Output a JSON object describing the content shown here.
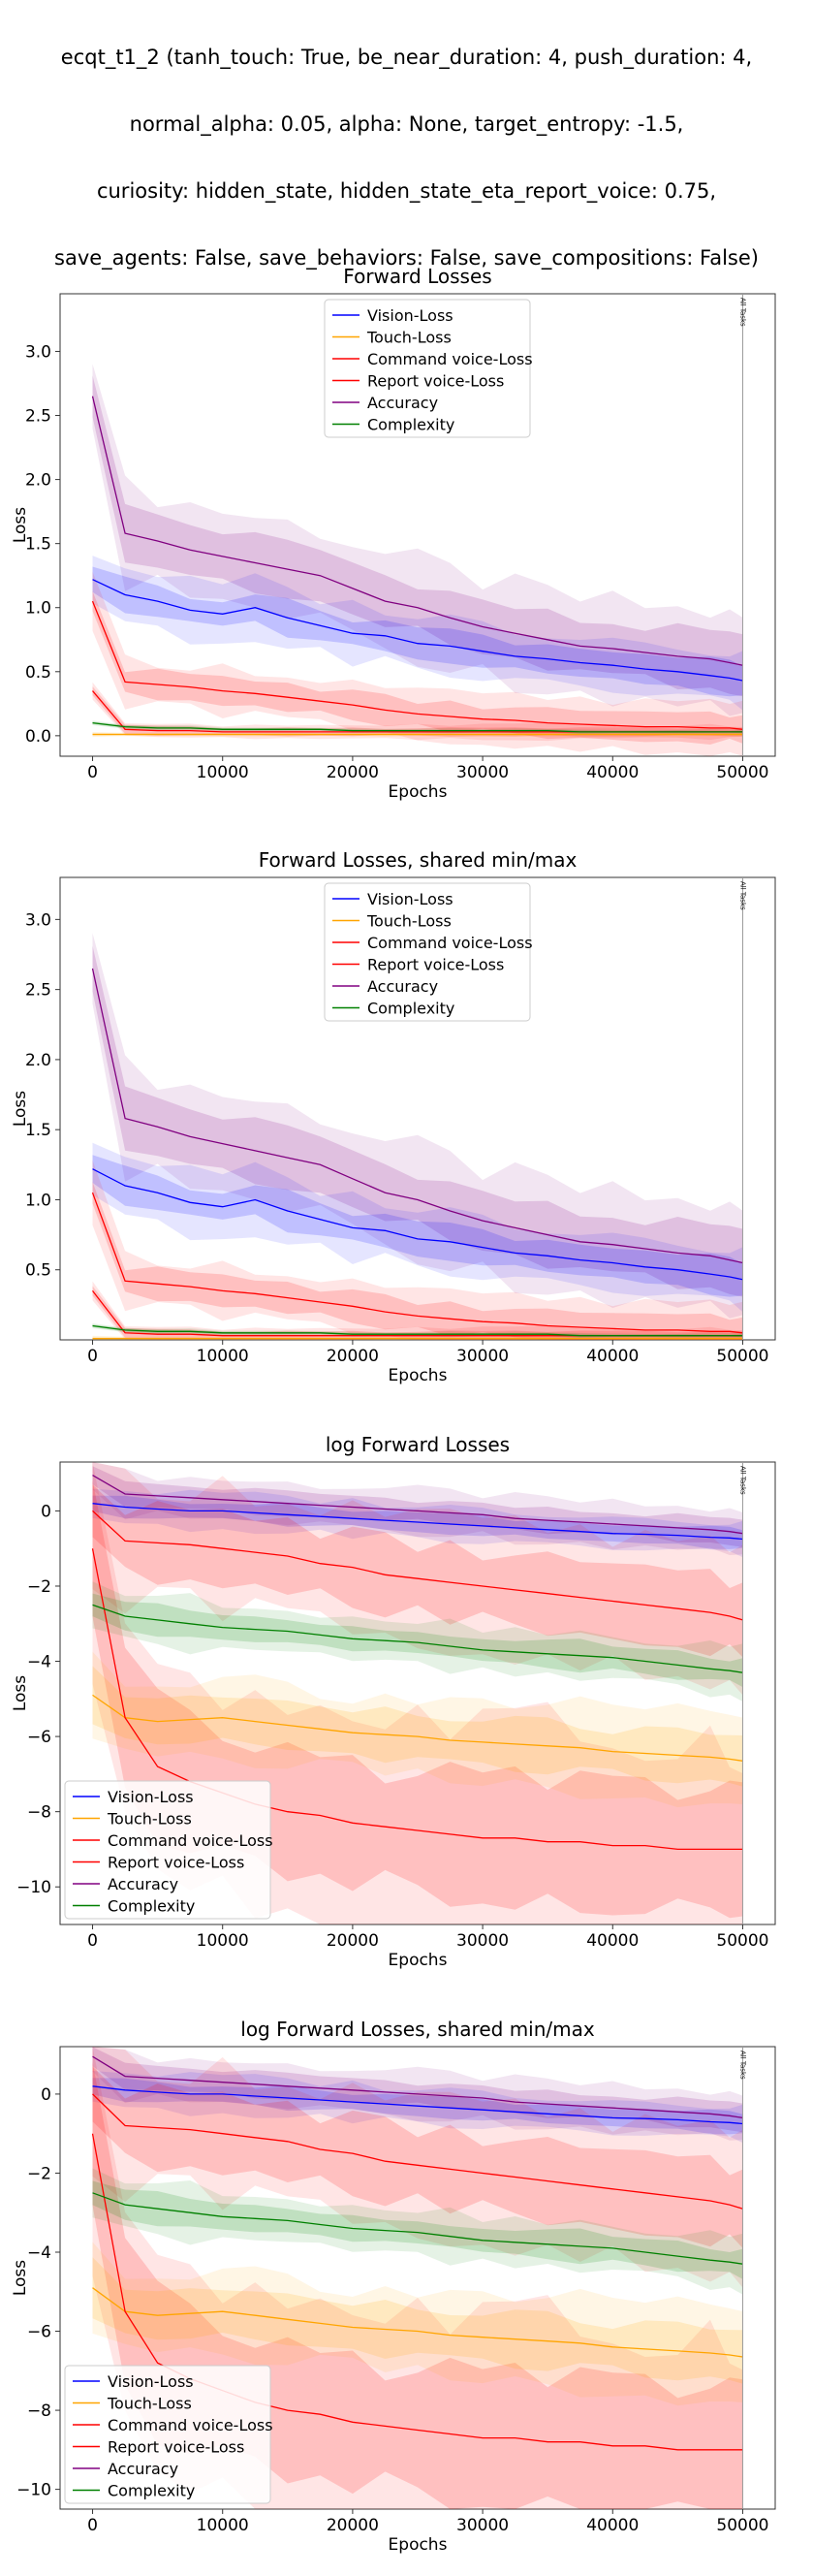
{
  "suptitle_lines": [
    "ecqt_t1_2 (tanh_touch: True, be_near_duration: 4, push_duration: 4,",
    "normal_alpha: 0.05, alpha: None, target_entropy: -1.5,",
    "curiosity: hidden_state, hidden_state_eta_report_voice: 0.75,",
    "save_agents: False, save_behaviors: False, save_compositions: False)"
  ],
  "colors": {
    "vision": "#0000ff",
    "touch": "#ffa500",
    "command": "#ff0000",
    "report": "#ff0000",
    "accuracy": "#800080",
    "complexity": "#008000"
  },
  "chart_data": [
    {
      "type": "line",
      "title": "Forward Losses",
      "xlabel": "Epochs",
      "ylabel": "Loss",
      "xlim": [
        -2500,
        52500
      ],
      "ylim": [
        -0.16,
        3.45
      ],
      "xticks": [
        0,
        10000,
        20000,
        30000,
        40000,
        50000
      ],
      "yticks": [
        0.0,
        0.5,
        1.0,
        1.5,
        2.0,
        2.5,
        3.0
      ],
      "ytick_labels": [
        "0.0",
        "0.5",
        "1.0",
        "1.5",
        "2.0",
        "2.5",
        "3.0"
      ],
      "log": false,
      "legend": "top-center",
      "vline_label": "All Tasks",
      "vline_x": 50000,
      "series": [
        {
          "name": "Vision-Loss",
          "key": "vision",
          "values": [
            1.22,
            1.1,
            1.05,
            0.98,
            0.95,
            1.0,
            0.92,
            0.86,
            0.8,
            0.78,
            0.72,
            0.7,
            0.66,
            0.62,
            0.6,
            0.57,
            0.55,
            0.52,
            0.5,
            0.47,
            0.45,
            0.43
          ]
        },
        {
          "name": "Touch-Loss",
          "key": "touch",
          "values": [
            0.01,
            0.01,
            0.01,
            0.01,
            0.01,
            0.01,
            0.01,
            0.01,
            0.01,
            0.01,
            0.01,
            0.01,
            0.01,
            0.01,
            0.01,
            0.01,
            0.01,
            0.01,
            0.01,
            0.01,
            0.01,
            0.01
          ]
        },
        {
          "name": "Command voice-Loss",
          "key": "command",
          "values": [
            0.35,
            0.05,
            0.04,
            0.04,
            0.03,
            0.03,
            0.03,
            0.03,
            0.03,
            0.03,
            0.03,
            0.03,
            0.03,
            0.03,
            0.03,
            0.03,
            0.03,
            0.03,
            0.03,
            0.03,
            0.03,
            0.03
          ]
        },
        {
          "name": "Report voice-Loss",
          "key": "report",
          "values": [
            1.05,
            0.42,
            0.4,
            0.38,
            0.35,
            0.33,
            0.3,
            0.27,
            0.24,
            0.2,
            0.17,
            0.15,
            0.13,
            0.12,
            0.1,
            0.09,
            0.08,
            0.07,
            0.07,
            0.06,
            0.06,
            0.05
          ]
        },
        {
          "name": "Accuracy",
          "key": "accuracy",
          "values": [
            2.65,
            1.58,
            1.52,
            1.45,
            1.4,
            1.35,
            1.3,
            1.25,
            1.15,
            1.05,
            1.0,
            0.92,
            0.85,
            0.8,
            0.75,
            0.7,
            0.68,
            0.65,
            0.62,
            0.6,
            0.57,
            0.55
          ]
        },
        {
          "name": "Complexity",
          "key": "complexity",
          "values": [
            0.1,
            0.07,
            0.06,
            0.06,
            0.05,
            0.05,
            0.05,
            0.05,
            0.04,
            0.04,
            0.04,
            0.04,
            0.04,
            0.04,
            0.04,
            0.03,
            0.03,
            0.03,
            0.03,
            0.03,
            0.03,
            0.03
          ]
        }
      ],
      "x": [
        0,
        2500,
        5000,
        7500,
        10000,
        12500,
        15000,
        17500,
        20000,
        22500,
        25000,
        27500,
        30000,
        32500,
        35000,
        37500,
        40000,
        42500,
        45000,
        47500,
        49000,
        50000
      ]
    },
    {
      "type": "line",
      "title": "Forward Losses, shared min/max",
      "xlabel": "Epochs",
      "ylabel": "Loss",
      "xlim": [
        -2500,
        52500
      ],
      "ylim": [
        0.0,
        3.3
      ],
      "xticks": [
        0,
        10000,
        20000,
        30000,
        40000,
        50000
      ],
      "yticks": [
        0.5,
        1.0,
        1.5,
        2.0,
        2.5,
        3.0
      ],
      "ytick_labels": [
        "0.5",
        "1.0",
        "1.5",
        "2.0",
        "2.5",
        "3.0"
      ],
      "log": false,
      "legend": "top-center",
      "vline_label": "All Tasks",
      "vline_x": 50000,
      "series": [
        {
          "name": "Vision-Loss",
          "key": "vision",
          "values": [
            1.22,
            1.1,
            1.05,
            0.98,
            0.95,
            1.0,
            0.92,
            0.86,
            0.8,
            0.78,
            0.72,
            0.7,
            0.66,
            0.62,
            0.6,
            0.57,
            0.55,
            0.52,
            0.5,
            0.47,
            0.45,
            0.43
          ]
        },
        {
          "name": "Touch-Loss",
          "key": "touch",
          "values": [
            0.01,
            0.01,
            0.01,
            0.01,
            0.01,
            0.01,
            0.01,
            0.01,
            0.01,
            0.01,
            0.01,
            0.01,
            0.01,
            0.01,
            0.01,
            0.01,
            0.01,
            0.01,
            0.01,
            0.01,
            0.01,
            0.01
          ]
        },
        {
          "name": "Command voice-Loss",
          "key": "command",
          "values": [
            0.35,
            0.05,
            0.04,
            0.04,
            0.03,
            0.03,
            0.03,
            0.03,
            0.03,
            0.03,
            0.03,
            0.03,
            0.03,
            0.03,
            0.03,
            0.03,
            0.03,
            0.03,
            0.03,
            0.03,
            0.03,
            0.03
          ]
        },
        {
          "name": "Report voice-Loss",
          "key": "report",
          "values": [
            1.05,
            0.42,
            0.4,
            0.38,
            0.35,
            0.33,
            0.3,
            0.27,
            0.24,
            0.2,
            0.17,
            0.15,
            0.13,
            0.12,
            0.1,
            0.09,
            0.08,
            0.07,
            0.07,
            0.06,
            0.06,
            0.05
          ]
        },
        {
          "name": "Accuracy",
          "key": "accuracy",
          "values": [
            2.65,
            1.58,
            1.52,
            1.45,
            1.4,
            1.35,
            1.3,
            1.25,
            1.15,
            1.05,
            1.0,
            0.92,
            0.85,
            0.8,
            0.75,
            0.7,
            0.68,
            0.65,
            0.62,
            0.6,
            0.57,
            0.55
          ]
        },
        {
          "name": "Complexity",
          "key": "complexity",
          "values": [
            0.1,
            0.07,
            0.06,
            0.06,
            0.05,
            0.05,
            0.05,
            0.05,
            0.04,
            0.04,
            0.04,
            0.04,
            0.04,
            0.04,
            0.04,
            0.03,
            0.03,
            0.03,
            0.03,
            0.03,
            0.03,
            0.03
          ]
        }
      ],
      "x": [
        0,
        2500,
        5000,
        7500,
        10000,
        12500,
        15000,
        17500,
        20000,
        22500,
        25000,
        27500,
        30000,
        32500,
        35000,
        37500,
        40000,
        42500,
        45000,
        47500,
        49000,
        50000
      ]
    },
    {
      "type": "line",
      "title": "log Forward Losses",
      "xlabel": "Epochs",
      "ylabel": "Loss",
      "xlim": [
        -2500,
        52500
      ],
      "ylim": [
        -11.0,
        1.3
      ],
      "xticks": [
        0,
        10000,
        20000,
        30000,
        40000,
        50000
      ],
      "yticks": [
        0,
        -2,
        -4,
        -6,
        -8,
        -10
      ],
      "ytick_labels": [
        "0",
        "−2",
        "−4",
        "−6",
        "−8",
        "−10"
      ],
      "log": true,
      "legend": "bottom-left",
      "vline_label": "All Tasks",
      "vline_x": 50000,
      "series": [
        {
          "name": "Vision-Loss",
          "key": "vision",
          "values": [
            0.2,
            0.1,
            0.05,
            0.0,
            0.0,
            -0.05,
            -0.1,
            -0.15,
            -0.2,
            -0.25,
            -0.3,
            -0.35,
            -0.4,
            -0.45,
            -0.5,
            -0.55,
            -0.6,
            -0.62,
            -0.65,
            -0.7,
            -0.72,
            -0.75
          ]
        },
        {
          "name": "Touch-Loss",
          "key": "touch",
          "values": [
            -4.9,
            -5.5,
            -5.6,
            -5.55,
            -5.5,
            -5.6,
            -5.7,
            -5.8,
            -5.9,
            -5.95,
            -6.0,
            -6.1,
            -6.15,
            -6.2,
            -6.25,
            -6.3,
            -6.4,
            -6.45,
            -6.5,
            -6.55,
            -6.6,
            -6.65
          ]
        },
        {
          "name": "Command voice-Loss",
          "key": "command",
          "values": [
            -1.0,
            -5.5,
            -6.8,
            -7.2,
            -7.5,
            -7.8,
            -8.0,
            -8.1,
            -8.3,
            -8.4,
            -8.5,
            -8.6,
            -8.7,
            -8.7,
            -8.8,
            -8.8,
            -8.9,
            -8.9,
            -9.0,
            -9.0,
            -9.0,
            -9.0
          ]
        },
        {
          "name": "Report voice-Loss",
          "key": "report",
          "values": [
            0.0,
            -0.8,
            -0.85,
            -0.9,
            -1.0,
            -1.1,
            -1.2,
            -1.4,
            -1.5,
            -1.7,
            -1.8,
            -1.9,
            -2.0,
            -2.1,
            -2.2,
            -2.3,
            -2.4,
            -2.5,
            -2.6,
            -2.7,
            -2.8,
            -2.9
          ]
        },
        {
          "name": "Accuracy",
          "key": "accuracy",
          "values": [
            0.95,
            0.45,
            0.4,
            0.35,
            0.3,
            0.25,
            0.2,
            0.15,
            0.1,
            0.05,
            0.0,
            -0.05,
            -0.1,
            -0.2,
            -0.25,
            -0.3,
            -0.35,
            -0.4,
            -0.45,
            -0.5,
            -0.55,
            -0.6
          ]
        },
        {
          "name": "Complexity",
          "key": "complexity",
          "values": [
            -2.5,
            -2.8,
            -2.9,
            -3.0,
            -3.1,
            -3.15,
            -3.2,
            -3.3,
            -3.4,
            -3.45,
            -3.5,
            -3.6,
            -3.7,
            -3.75,
            -3.8,
            -3.85,
            -3.9,
            -4.0,
            -4.1,
            -4.2,
            -4.25,
            -4.3
          ]
        }
      ],
      "x": [
        0,
        2500,
        5000,
        7500,
        10000,
        12500,
        15000,
        17500,
        20000,
        22500,
        25000,
        27500,
        30000,
        32500,
        35000,
        37500,
        40000,
        42500,
        45000,
        47500,
        49000,
        50000
      ]
    },
    {
      "type": "line",
      "title": "log Forward Losses, shared min/max",
      "xlabel": "Epochs",
      "ylabel": "Loss",
      "xlim": [
        -2500,
        52500
      ],
      "ylim": [
        -10.5,
        1.2
      ],
      "xticks": [
        0,
        10000,
        20000,
        30000,
        40000,
        50000
      ],
      "yticks": [
        0,
        -2,
        -4,
        -6,
        -8,
        -10
      ],
      "ytick_labels": [
        "0",
        "−2",
        "−4",
        "−6",
        "−8",
        "−10"
      ],
      "log": true,
      "legend": "bottom-left",
      "vline_label": "All Tasks",
      "vline_x": 50000,
      "series": [
        {
          "name": "Vision-Loss",
          "key": "vision",
          "values": [
            0.2,
            0.1,
            0.05,
            0.0,
            0.0,
            -0.05,
            -0.1,
            -0.15,
            -0.2,
            -0.25,
            -0.3,
            -0.35,
            -0.4,
            -0.45,
            -0.5,
            -0.55,
            -0.6,
            -0.62,
            -0.65,
            -0.7,
            -0.72,
            -0.75
          ]
        },
        {
          "name": "Touch-Loss",
          "key": "touch",
          "values": [
            -4.9,
            -5.5,
            -5.6,
            -5.55,
            -5.5,
            -5.6,
            -5.7,
            -5.8,
            -5.9,
            -5.95,
            -6.0,
            -6.1,
            -6.15,
            -6.2,
            -6.25,
            -6.3,
            -6.4,
            -6.45,
            -6.5,
            -6.55,
            -6.6,
            -6.65
          ]
        },
        {
          "name": "Command voice-Loss",
          "key": "command",
          "values": [
            -1.0,
            -5.5,
            -6.8,
            -7.2,
            -7.5,
            -7.8,
            -8.0,
            -8.1,
            -8.3,
            -8.4,
            -8.5,
            -8.6,
            -8.7,
            -8.7,
            -8.8,
            -8.8,
            -8.9,
            -8.9,
            -9.0,
            -9.0,
            -9.0,
            -9.0
          ]
        },
        {
          "name": "Report voice-Loss",
          "key": "report",
          "values": [
            0.0,
            -0.8,
            -0.85,
            -0.9,
            -1.0,
            -1.1,
            -1.2,
            -1.4,
            -1.5,
            -1.7,
            -1.8,
            -1.9,
            -2.0,
            -2.1,
            -2.2,
            -2.3,
            -2.4,
            -2.5,
            -2.6,
            -2.7,
            -2.8,
            -2.9
          ]
        },
        {
          "name": "Accuracy",
          "key": "accuracy",
          "values": [
            0.95,
            0.45,
            0.4,
            0.35,
            0.3,
            0.25,
            0.2,
            0.15,
            0.1,
            0.05,
            0.0,
            -0.05,
            -0.1,
            -0.2,
            -0.25,
            -0.3,
            -0.35,
            -0.4,
            -0.45,
            -0.5,
            -0.55,
            -0.6
          ]
        },
        {
          "name": "Complexity",
          "key": "complexity",
          "values": [
            -2.5,
            -2.8,
            -2.9,
            -3.0,
            -3.1,
            -3.15,
            -3.2,
            -3.3,
            -3.4,
            -3.45,
            -3.5,
            -3.6,
            -3.7,
            -3.75,
            -3.8,
            -3.85,
            -3.9,
            -4.0,
            -4.1,
            -4.2,
            -4.25,
            -4.3
          ]
        }
      ],
      "x": [
        0,
        2500,
        5000,
        7500,
        10000,
        12500,
        15000,
        17500,
        20000,
        22500,
        25000,
        27500,
        30000,
        32500,
        35000,
        37500,
        40000,
        42500,
        45000,
        47500,
        49000,
        50000
      ]
    }
  ]
}
